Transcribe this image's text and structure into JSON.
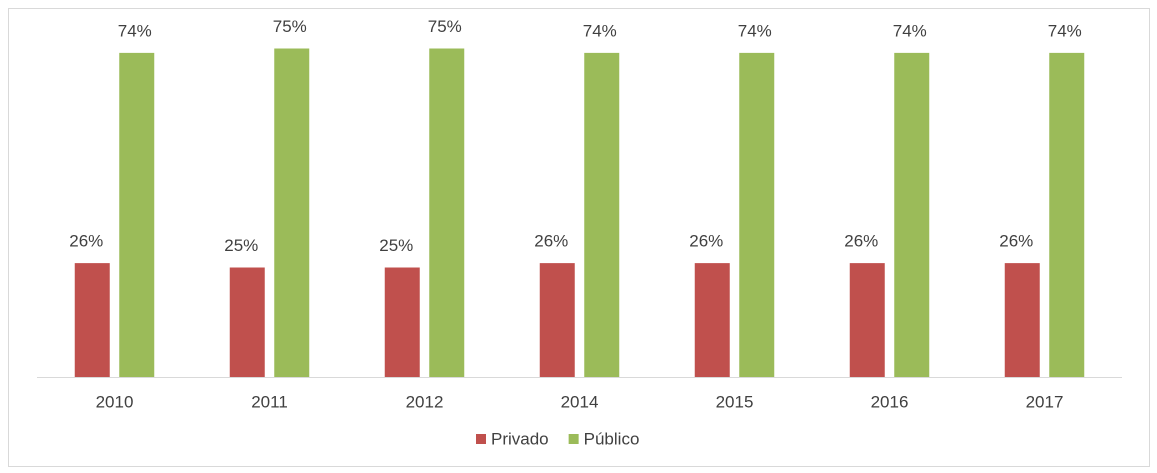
{
  "chart_data": {
    "type": "bar",
    "categories": [
      "2010",
      "2011",
      "2012",
      "2014",
      "2015",
      "2016",
      "2017"
    ],
    "series": [
      {
        "name": "Privado",
        "color": "#c0504d",
        "values": [
          26,
          25,
          25,
          26,
          26,
          26,
          26
        ],
        "value_labels": [
          "26%",
          "25%",
          "25%",
          "26%",
          "26%",
          "26%",
          "26%"
        ]
      },
      {
        "name": "Público",
        "color": "#9bbb59",
        "values": [
          74,
          75,
          75,
          74,
          74,
          74,
          74
        ],
        "value_labels": [
          "74%",
          "75%",
          "75%",
          "74%",
          "74%",
          "74%",
          "74%"
        ]
      }
    ],
    "legend": "bottom"
  }
}
